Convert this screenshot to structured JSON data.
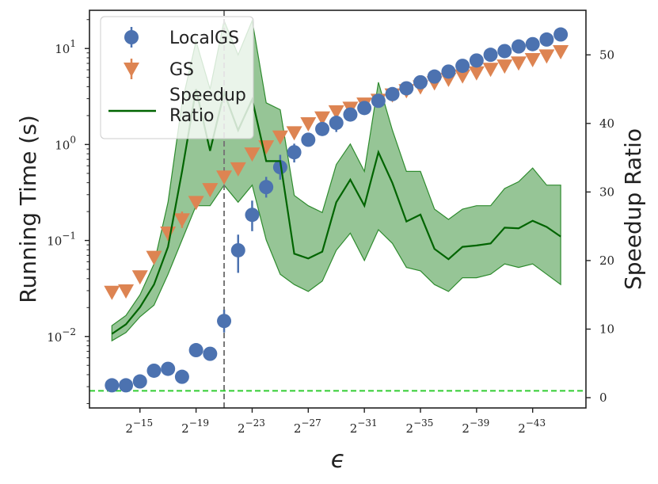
{
  "chart_data": {
    "type": "scatter",
    "title": "",
    "xlabel": "ϵ",
    "ylabel_left": "Running Time (s)",
    "ylabel_right": "Speedup Ratio",
    "yscale_left": "log",
    "ylim_left": [
      0.0018,
      25
    ],
    "ylim_right": [
      -1.5,
      56.5
    ],
    "x_tick_exponents": [
      15,
      19,
      23,
      27,
      31,
      35,
      39,
      43
    ],
    "x_tick_base": "2",
    "x_tick_sign": "−",
    "y_left_ticks": [
      {
        "value": 0.01,
        "exp": "−2"
      },
      {
        "value": 0.1,
        "exp": "−1"
      },
      {
        "value": 1,
        "exp": "0"
      },
      {
        "value": 10,
        "exp": "1"
      }
    ],
    "y_left_base": "10",
    "y_right_ticks": [
      0,
      10,
      20,
      30,
      40,
      50
    ],
    "x": [
      13,
      14,
      15,
      16,
      17,
      18,
      19,
      20,
      21,
      22,
      23,
      24,
      25,
      26,
      27,
      28,
      29,
      30,
      31,
      32,
      33,
      34,
      35,
      36,
      37,
      38,
      39,
      40,
      41,
      42,
      43,
      44,
      45
    ],
    "vline_x": 21,
    "hline_right": 1,
    "legend_position": "upper-left",
    "series": [
      {
        "name": "LocalGS",
        "marker": "circle",
        "color": "#4c72b0",
        "values": [
          0.0031,
          0.0031,
          0.0034,
          0.0044,
          0.0046,
          0.0038,
          0.0072,
          0.0066,
          0.0145,
          0.079,
          0.185,
          0.36,
          0.58,
          0.83,
          1.12,
          1.45,
          1.68,
          2.05,
          2.4,
          2.85,
          3.35,
          3.85,
          4.45,
          5.1,
          5.75,
          6.6,
          7.5,
          8.6,
          9.4,
          10.5,
          11.1,
          12.4,
          14.0
        ],
        "error_low": [
          0.0029,
          0.0029,
          0.0032,
          0.0042,
          0.0044,
          0.0036,
          0.0069,
          0.0063,
          0.011,
          0.046,
          0.125,
          0.28,
          0.43,
          0.65,
          0.95,
          1.25,
          1.35,
          1.8,
          2.1,
          2.6,
          3.1,
          3.6,
          4.2,
          4.8,
          5.4,
          6.2,
          7.1,
          8.2,
          9.0,
          10.0,
          10.6,
          11.8,
          13.4
        ],
        "error_high": [
          0.0033,
          0.0033,
          0.0036,
          0.0046,
          0.0048,
          0.004,
          0.0075,
          0.0069,
          0.019,
          0.115,
          0.26,
          0.46,
          0.78,
          1.02,
          1.3,
          1.65,
          2.0,
          2.3,
          2.7,
          3.1,
          3.6,
          4.1,
          4.7,
          5.4,
          6.1,
          7.0,
          7.9,
          9.0,
          9.8,
          11.0,
          11.6,
          13.0,
          14.6
        ]
      },
      {
        "name": "GS",
        "marker": "triangle-down",
        "color": "#dd8452",
        "values": [
          0.029,
          0.03,
          0.042,
          0.067,
          0.12,
          0.165,
          0.25,
          0.34,
          0.46,
          0.56,
          0.8,
          0.95,
          1.2,
          1.33,
          1.65,
          1.9,
          2.2,
          2.4,
          2.65,
          2.9,
          3.3,
          3.65,
          4.0,
          4.4,
          4.8,
          5.2,
          5.6,
          6.1,
          6.6,
          7.1,
          7.7,
          8.4,
          9.3
        ],
        "error_low": [
          0.028,
          0.029,
          0.04,
          0.064,
          0.1,
          0.135,
          0.22,
          0.32,
          0.42,
          0.53,
          0.75,
          0.9,
          1.15,
          1.28,
          1.6,
          1.8,
          2.1,
          2.3,
          2.55,
          2.8,
          3.2,
          3.55,
          3.9,
          4.3,
          4.7,
          5.1,
          5.5,
          6.0,
          6.5,
          7.0,
          7.6,
          8.3,
          9.2
        ],
        "error_high": [
          0.03,
          0.031,
          0.044,
          0.07,
          0.14,
          0.2,
          0.28,
          0.36,
          0.5,
          0.6,
          0.85,
          1.0,
          1.25,
          1.38,
          1.7,
          2.0,
          2.3,
          2.5,
          2.75,
          3.0,
          3.4,
          3.75,
          4.1,
          4.5,
          4.9,
          5.3,
          5.7,
          6.2,
          6.7,
          7.2,
          7.8,
          8.5,
          9.4
        ]
      },
      {
        "name": "Speedup\nRatio",
        "axis": "right",
        "line": true,
        "color": "#006400",
        "fill_color": "#2e8b2e",
        "values": [
          9.3,
          10.7,
          13.2,
          16.5,
          22.0,
          33.0,
          45.0,
          36.0,
          44.5,
          39.0,
          43.5,
          34.5,
          34.5,
          21.0,
          20.3,
          21.3,
          28.5,
          31.8,
          28.0,
          35.8,
          31.3,
          25.7,
          26.7,
          21.7,
          20.2,
          22.0,
          22.2,
          22.5,
          24.8,
          24.7,
          25.8,
          24.9,
          23.5
        ],
        "band_low": [
          8.3,
          9.5,
          11.8,
          13.5,
          18.0,
          23.0,
          28.0,
          28.0,
          31.0,
          28.5,
          31.0,
          23.0,
          18.0,
          16.5,
          15.5,
          17.0,
          21.5,
          24.0,
          20.0,
          24.5,
          22.5,
          19.0,
          18.5,
          16.5,
          15.5,
          17.5,
          17.5,
          18.0,
          19.5,
          19.0,
          19.5,
          18.0,
          16.5
        ],
        "band_high": [
          10.5,
          12.0,
          15.0,
          19.5,
          28.5,
          43.0,
          52.0,
          45.0,
          55.0,
          50.0,
          55.0,
          43.0,
          42.0,
          29.5,
          28.0,
          27.0,
          34.0,
          37.0,
          33.0,
          46.0,
          39.0,
          33.0,
          33.0,
          27.5,
          26.0,
          27.5,
          28.0,
          28.0,
          30.5,
          31.5,
          33.5,
          31.0,
          31.0
        ]
      }
    ]
  }
}
